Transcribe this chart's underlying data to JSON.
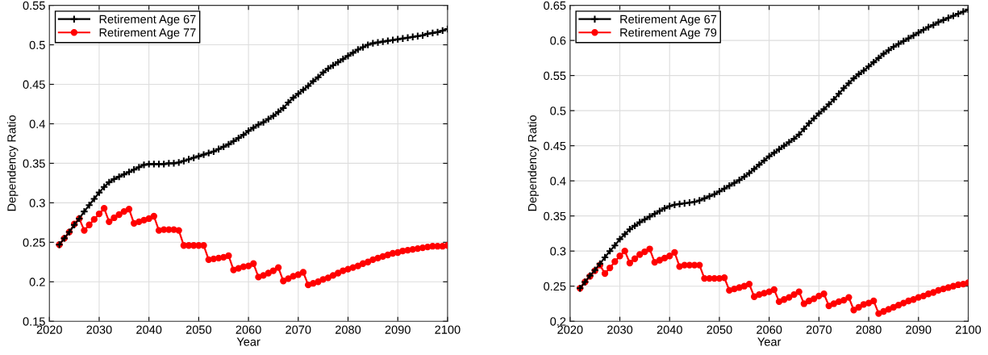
{
  "chart_data": [
    {
      "type": "line",
      "xlabel": "Year",
      "ylabel": "Dependency Ratio",
      "xlim": [
        2020,
        2100
      ],
      "xticks": [
        2020,
        2030,
        2040,
        2050,
        2060,
        2070,
        2080,
        2090,
        2100
      ],
      "ylim": [
        0.15,
        0.55
      ],
      "yticks": [
        0.15,
        0.2,
        0.25,
        0.3,
        0.35,
        0.4,
        0.45,
        0.5,
        0.55
      ],
      "grid": true,
      "legend": "top left",
      "x": [
        2022,
        2023,
        2024,
        2025,
        2026,
        2027,
        2028,
        2029,
        2030,
        2031,
        2032,
        2033,
        2034,
        2035,
        2036,
        2037,
        2038,
        2039,
        2040,
        2041,
        2042,
        2043,
        2044,
        2045,
        2046,
        2047,
        2048,
        2049,
        2050,
        2051,
        2052,
        2053,
        2054,
        2055,
        2056,
        2057,
        2058,
        2059,
        2060,
        2061,
        2062,
        2063,
        2064,
        2065,
        2066,
        2067,
        2068,
        2069,
        2070,
        2071,
        2072,
        2073,
        2074,
        2075,
        2076,
        2077,
        2078,
        2079,
        2080,
        2081,
        2082,
        2083,
        2084,
        2085,
        2086,
        2087,
        2088,
        2089,
        2090,
        2091,
        2092,
        2093,
        2094,
        2095,
        2096,
        2097,
        2098,
        2099,
        2100
      ],
      "series": [
        {
          "name": "Retirement Age 67",
          "color": "#000000",
          "marker": "cross",
          "line_style": "solid",
          "values": [
            0.247,
            0.255,
            0.263,
            0.272,
            0.28,
            0.289,
            0.297,
            0.305,
            0.313,
            0.32,
            0.326,
            0.33,
            0.333,
            0.336,
            0.339,
            0.342,
            0.345,
            0.348,
            0.349,
            0.349,
            0.349,
            0.349,
            0.35,
            0.35,
            0.351,
            0.353,
            0.355,
            0.357,
            0.359,
            0.361,
            0.363,
            0.365,
            0.368,
            0.371,
            0.374,
            0.378,
            0.382,
            0.386,
            0.391,
            0.395,
            0.399,
            0.402,
            0.406,
            0.41,
            0.415,
            0.42,
            0.427,
            0.433,
            0.438,
            0.443,
            0.448,
            0.454,
            0.459,
            0.465,
            0.47,
            0.474,
            0.478,
            0.482,
            0.486,
            0.49,
            0.494,
            0.497,
            0.5,
            0.502,
            0.503,
            0.504,
            0.505,
            0.506,
            0.507,
            0.508,
            0.509,
            0.51,
            0.511,
            0.512,
            0.514,
            0.515,
            0.516,
            0.518,
            0.52
          ]
        },
        {
          "name": "Retirement Age 77",
          "color": "#ff0000",
          "marker": "circle",
          "line_style": "solid",
          "values": [
            0.247,
            0.255,
            0.263,
            0.273,
            0.28,
            0.265,
            0.272,
            0.279,
            0.286,
            0.293,
            0.276,
            0.281,
            0.285,
            0.289,
            0.292,
            0.274,
            0.276,
            0.278,
            0.28,
            0.283,
            0.265,
            0.266,
            0.266,
            0.266,
            0.265,
            0.246,
            0.246,
            0.246,
            0.246,
            0.246,
            0.228,
            0.229,
            0.23,
            0.231,
            0.233,
            0.215,
            0.217,
            0.219,
            0.22,
            0.223,
            0.206,
            0.208,
            0.211,
            0.214,
            0.218,
            0.201,
            0.204,
            0.207,
            0.209,
            0.212,
            0.196,
            0.198,
            0.2,
            0.203,
            0.205,
            0.208,
            0.211,
            0.214,
            0.216,
            0.218,
            0.22,
            0.223,
            0.225,
            0.228,
            0.23,
            0.232,
            0.234,
            0.236,
            0.237,
            0.239,
            0.24,
            0.241,
            0.242,
            0.243,
            0.244,
            0.245,
            0.245,
            0.245,
            0.246
          ]
        }
      ]
    },
    {
      "type": "line",
      "xlabel": "Year",
      "ylabel": "Dependency Ratio",
      "xlim": [
        2020,
        2100
      ],
      "xticks": [
        2020,
        2030,
        2040,
        2050,
        2060,
        2070,
        2080,
        2090,
        2100
      ],
      "ylim": [
        0.2,
        0.65
      ],
      "yticks": [
        0.2,
        0.25,
        0.3,
        0.35,
        0.4,
        0.45,
        0.5,
        0.55,
        0.6,
        0.65
      ],
      "grid": true,
      "legend": "top left",
      "x": [
        2022,
        2023,
        2024,
        2025,
        2026,
        2027,
        2028,
        2029,
        2030,
        2031,
        2032,
        2033,
        2034,
        2035,
        2036,
        2037,
        2038,
        2039,
        2040,
        2041,
        2042,
        2043,
        2044,
        2045,
        2046,
        2047,
        2048,
        2049,
        2050,
        2051,
        2052,
        2053,
        2054,
        2055,
        2056,
        2057,
        2058,
        2059,
        2060,
        2061,
        2062,
        2063,
        2064,
        2065,
        2066,
        2067,
        2068,
        2069,
        2070,
        2071,
        2072,
        2073,
        2074,
        2075,
        2076,
        2077,
        2078,
        2079,
        2080,
        2081,
        2082,
        2083,
        2084,
        2085,
        2086,
        2087,
        2088,
        2089,
        2090,
        2091,
        2092,
        2093,
        2094,
        2095,
        2096,
        2097,
        2098,
        2099,
        2100
      ],
      "series": [
        {
          "name": "Retirement Age 67",
          "color": "#000000",
          "marker": "cross",
          "line_style": "solid",
          "values": [
            0.247,
            0.256,
            0.265,
            0.273,
            0.282,
            0.291,
            0.3,
            0.308,
            0.317,
            0.324,
            0.331,
            0.336,
            0.341,
            0.345,
            0.349,
            0.353,
            0.357,
            0.361,
            0.364,
            0.366,
            0.367,
            0.368,
            0.369,
            0.37,
            0.372,
            0.375,
            0.378,
            0.381,
            0.385,
            0.389,
            0.393,
            0.397,
            0.401,
            0.406,
            0.411,
            0.417,
            0.423,
            0.429,
            0.435,
            0.44,
            0.445,
            0.45,
            0.455,
            0.46,
            0.466,
            0.474,
            0.482,
            0.489,
            0.496,
            0.502,
            0.509,
            0.516,
            0.524,
            0.532,
            0.539,
            0.546,
            0.552,
            0.557,
            0.563,
            0.569,
            0.575,
            0.581,
            0.586,
            0.591,
            0.595,
            0.599,
            0.603,
            0.607,
            0.611,
            0.615,
            0.619,
            0.622,
            0.626,
            0.629,
            0.632,
            0.635,
            0.638,
            0.641,
            0.644
          ]
        },
        {
          "name": "Retirement Age 79",
          "color": "#ff0000",
          "marker": "circle",
          "line_style": "solid",
          "values": [
            0.247,
            0.256,
            0.264,
            0.272,
            0.28,
            0.268,
            0.276,
            0.285,
            0.293,
            0.3,
            0.283,
            0.289,
            0.295,
            0.299,
            0.303,
            0.284,
            0.287,
            0.29,
            0.293,
            0.298,
            0.278,
            0.28,
            0.28,
            0.28,
            0.28,
            0.261,
            0.261,
            0.261,
            0.261,
            0.262,
            0.244,
            0.246,
            0.248,
            0.25,
            0.253,
            0.235,
            0.238,
            0.24,
            0.242,
            0.245,
            0.228,
            0.231,
            0.234,
            0.238,
            0.242,
            0.225,
            0.229,
            0.232,
            0.236,
            0.239,
            0.222,
            0.225,
            0.228,
            0.23,
            0.234,
            0.216,
            0.22,
            0.224,
            0.226,
            0.229,
            0.211,
            0.214,
            0.217,
            0.22,
            0.223,
            0.226,
            0.229,
            0.231,
            0.234,
            0.236,
            0.239,
            0.241,
            0.244,
            0.246,
            0.248,
            0.25,
            0.252,
            0.253,
            0.255
          ]
        }
      ]
    }
  ]
}
